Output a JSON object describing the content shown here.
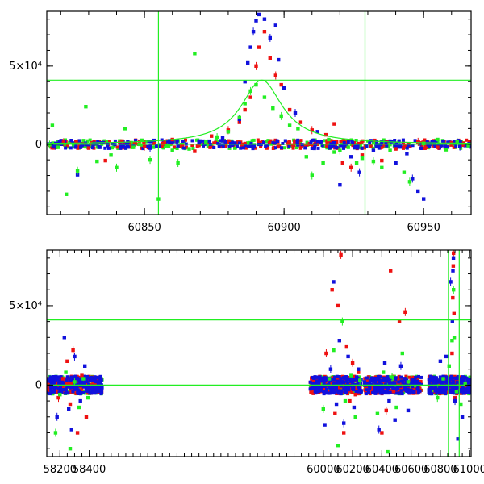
{
  "colors": {
    "red": "#ee1111",
    "blue": "#1111dd",
    "green": "#22ee22",
    "axis": "#000000"
  },
  "chart_data": [
    {
      "type": "scatter",
      "panel": "top",
      "xlim": [
        60815,
        60967
      ],
      "ylim": [
        -45000,
        85000
      ],
      "xticks": [
        60850,
        60900,
        60950
      ],
      "xtick_labels": [
        "60850",
        "60900",
        "60950"
      ],
      "yticks": [
        0,
        50000
      ],
      "ytick_labels": [
        "0",
        "5×10⁴"
      ],
      "vertical_lines": [
        60855,
        60929
      ],
      "horizontal_lines": [
        0,
        41000
      ],
      "model": {
        "peak_x": 60892,
        "peak_y": 41000,
        "width": 9
      },
      "series": [
        {
          "color": "red",
          "points": [
            [
              60821,
              1200
            ],
            [
              60830,
              -2500
            ],
            [
              60836,
              -10500
            ],
            [
              60842,
              2000
            ],
            [
              60850,
              -1500
            ],
            [
              60860,
              3000
            ],
            [
              60868,
              -4500
            ],
            [
              60874,
              5200
            ],
            [
              60880,
              9000
            ],
            [
              60884,
              14000
            ],
            [
              60886,
              22000
            ],
            [
              60888,
              30000
            ],
            [
              60890,
              50000
            ],
            [
              60891,
              62000
            ],
            [
              60893,
              72000
            ],
            [
              60895,
              55000
            ],
            [
              60897,
              44000
            ],
            [
              60899,
              38000
            ],
            [
              60902,
              22000
            ],
            [
              60906,
              14000
            ],
            [
              60910,
              9000
            ],
            [
              60915,
              6000
            ],
            [
              60918,
              13000
            ],
            [
              60921,
              -12000
            ],
            [
              60924,
              -15000
            ],
            [
              60928,
              -7000
            ],
            [
              60935,
              -10500
            ],
            [
              60940,
              -3000
            ],
            [
              60948,
              1500
            ],
            [
              60955,
              -2000
            ],
            [
              60960,
              1000
            ],
            [
              60964,
              -500
            ]
          ]
        },
        {
          "color": "blue",
          "points": [
            [
              60818,
              -1000
            ],
            [
              60826,
              -19500
            ],
            [
              60834,
              -2000
            ],
            [
              60844,
              1500
            ],
            [
              60852,
              -2500
            ],
            [
              60862,
              -1000
            ],
            [
              60870,
              2000
            ],
            [
              60878,
              4000
            ],
            [
              60884,
              16000
            ],
            [
              60886,
              40000
            ],
            [
              60887,
              52000
            ],
            [
              60888,
              62000
            ],
            [
              60889,
              72000
            ],
            [
              60890,
              79000
            ],
            [
              60891,
              83000
            ],
            [
              60893,
              80000
            ],
            [
              60895,
              68000
            ],
            [
              60897,
              76000
            ],
            [
              60898,
              54000
            ],
            [
              60900,
              36000
            ],
            [
              60904,
              20000
            ],
            [
              60912,
              8000
            ],
            [
              60920,
              -26000
            ],
            [
              60924,
              -8000
            ],
            [
              60927,
              -18000
            ],
            [
              60932,
              -4000
            ],
            [
              60940,
              -12000
            ],
            [
              60944,
              -6000
            ],
            [
              60946,
              -22000
            ],
            [
              60948,
              -30000
            ],
            [
              60950,
              -35000
            ],
            [
              60958,
              -2000
            ],
            [
              60963,
              -1500
            ]
          ]
        },
        {
          "color": "green",
          "points": [
            [
              60816,
              -300
            ],
            [
              60817,
              12000
            ],
            [
              60819,
              -2000
            ],
            [
              60822,
              -32000
            ],
            [
              60826,
              -17000
            ],
            [
              60829,
              24000
            ],
            [
              60833,
              -11000
            ],
            [
              60838,
              -7000
            ],
            [
              60840,
              -15000
            ],
            [
              60843,
              10000
            ],
            [
              60846,
              -2000
            ],
            [
              60849,
              2500
            ],
            [
              60852,
              -10000
            ],
            [
              60855,
              -35000
            ],
            [
              60858,
              -1000
            ],
            [
              60860,
              -4000
            ],
            [
              60862,
              -12000
            ],
            [
              60866,
              -3000
            ],
            [
              60868,
              58000
            ],
            [
              60872,
              1500
            ],
            [
              60876,
              4500
            ],
            [
              60880,
              8000
            ],
            [
              60884,
              17000
            ],
            [
              60886,
              26000
            ],
            [
              60888,
              34000
            ],
            [
              60890,
              38000
            ],
            [
              60893,
              30000
            ],
            [
              60896,
              23000
            ],
            [
              60899,
              18000
            ],
            [
              60902,
              12000
            ],
            [
              60905,
              10000
            ],
            [
              60908,
              -8000
            ],
            [
              60910,
              -20000
            ],
            [
              60914,
              -12000
            ],
            [
              60916,
              3000
            ],
            [
              60918,
              -5000
            ],
            [
              60920,
              -4000
            ],
            [
              60923,
              -2000
            ],
            [
              60926,
              -12000
            ],
            [
              60928,
              -9000
            ],
            [
              60932,
              -11000
            ],
            [
              60935,
              -15000
            ],
            [
              60938,
              -4000
            ],
            [
              60943,
              -18000
            ],
            [
              60945,
              -24000
            ],
            [
              60950,
              500
            ],
            [
              60955,
              3000
            ],
            [
              60958,
              -3500
            ],
            [
              60962,
              1500
            ],
            [
              60966,
              -1000
            ]
          ]
        }
      ]
    },
    {
      "type": "scatter",
      "panel": "bottom",
      "xlim": [
        58110,
        61010
      ],
      "ylim": [
        -45000,
        85000
      ],
      "xticks": [
        58200,
        58400,
        60000,
        60200,
        60400,
        60600,
        60800,
        61000
      ],
      "xtick_labels": [
        "58200",
        "58400",
        "60000",
        "60200",
        "60400",
        "60600",
        "60800",
        "61000"
      ],
      "yticks": [
        0,
        50000
      ],
      "ytick_labels": [
        "0",
        "5×10⁴"
      ],
      "vertical_lines": [
        60855,
        60929
      ],
      "horizontal_lines": [
        0,
        41000
      ],
      "segments": [
        {
          "x_from": 58110,
          "x_to": 58490
        },
        {
          "x_from": 59910,
          "x_to": 60260
        },
        {
          "x_from": 60280,
          "x_to": 60670
        },
        {
          "x_from": 60720,
          "x_to": 61010
        }
      ],
      "series": [
        {
          "color": "red",
          "points": [
            [
              58190,
              -8000
            ],
            [
              58220,
              4000
            ],
            [
              58250,
              15000
            ],
            [
              58270,
              -12000
            ],
            [
              58290,
              22000
            ],
            [
              58320,
              -30000
            ],
            [
              58350,
              6000
            ],
            [
              58380,
              -20000
            ],
            [
              60020,
              20000
            ],
            [
              60060,
              60000
            ],
            [
              60080,
              -18000
            ],
            [
              60100,
              50000
            ],
            [
              60120,
              82000
            ],
            [
              60140,
              -30000
            ],
            [
              60160,
              24000
            ],
            [
              60180,
              -10000
            ],
            [
              60200,
              14000
            ],
            [
              60220,
              -6000
            ],
            [
              60240,
              8000
            ],
            [
              60400,
              -30000
            ],
            [
              60430,
              -16000
            ],
            [
              60460,
              72000
            ],
            [
              60480,
              -4000
            ],
            [
              60520,
              40000
            ],
            [
              60560,
              46000
            ],
            [
              60880,
              20000
            ],
            [
              60885,
              55000
            ],
            [
              60888,
              75000
            ],
            [
              60890,
              83000
            ],
            [
              60893,
              45000
            ],
            [
              60900,
              -8000
            ]
          ]
        },
        {
          "color": "blue",
          "points": [
            [
              58180,
              -20000
            ],
            [
              58230,
              30000
            ],
            [
              58260,
              -15000
            ],
            [
              58280,
              -28000
            ],
            [
              58300,
              18000
            ],
            [
              58340,
              -10000
            ],
            [
              58370,
              12000
            ],
            [
              60010,
              -25000
            ],
            [
              60050,
              10000
            ],
            [
              60070,
              65000
            ],
            [
              60090,
              -12000
            ],
            [
              60110,
              28000
            ],
            [
              60140,
              -24000
            ],
            [
              60170,
              18000
            ],
            [
              60210,
              -14000
            ],
            [
              60240,
              10000
            ],
            [
              60380,
              -28000
            ],
            [
              60420,
              14000
            ],
            [
              60450,
              -10000
            ],
            [
              60490,
              -22000
            ],
            [
              60530,
              12000
            ],
            [
              60580,
              -16000
            ],
            [
              60800,
              15000
            ],
            [
              60840,
              18000
            ],
            [
              60870,
              65000
            ],
            [
              60882,
              40000
            ],
            [
              60886,
              72000
            ],
            [
              60889,
              80000
            ],
            [
              60900,
              -10000
            ],
            [
              60920,
              -34000
            ],
            [
              60950,
              -20000
            ]
          ]
        },
        {
          "color": "green",
          "points": [
            [
              58170,
              -30000
            ],
            [
              58200,
              -6000
            ],
            [
              58240,
              8000
            ],
            [
              58270,
              -40000
            ],
            [
              58300,
              2000
            ],
            [
              58330,
              -14000
            ],
            [
              58360,
              4000
            ],
            [
              58390,
              -8000
            ],
            [
              60000,
              -15000
            ],
            [
              60040,
              4000
            ],
            [
              60070,
              22000
            ],
            [
              60100,
              -38000
            ],
            [
              60130,
              40000
            ],
            [
              60150,
              -10000
            ],
            [
              60190,
              6000
            ],
            [
              60220,
              -20000
            ],
            [
              60250,
              3000
            ],
            [
              60370,
              -18000
            ],
            [
              60410,
              8000
            ],
            [
              60440,
              -42000
            ],
            [
              60470,
              5000
            ],
            [
              60500,
              -14000
            ],
            [
              60540,
              20000
            ],
            [
              60580,
              2000
            ],
            [
              60780,
              -8000
            ],
            [
              60820,
              4000
            ],
            [
              60860,
              12000
            ],
            [
              60880,
              28000
            ],
            [
              60890,
              60000
            ],
            [
              60895,
              30000
            ],
            [
              60910,
              -4000
            ],
            [
              60940,
              -12000
            ],
            [
              60970,
              1000
            ]
          ]
        }
      ]
    }
  ]
}
